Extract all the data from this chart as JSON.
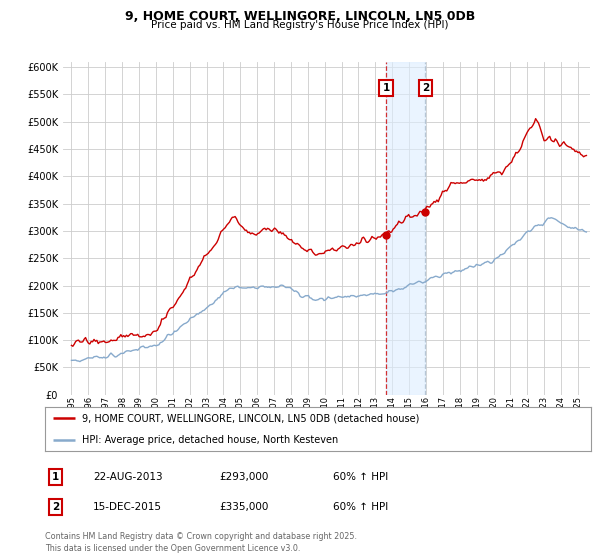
{
  "title": "9, HOME COURT, WELLINGORE, LINCOLN, LN5 0DB",
  "subtitle": "Price paid vs. HM Land Registry's House Price Index (HPI)",
  "red_label": "9, HOME COURT, WELLINGORE, LINCOLN, LN5 0DB (detached house)",
  "blue_label": "HPI: Average price, detached house, North Kesteven",
  "annotation1_date": "22-AUG-2013",
  "annotation1_price": "£293,000",
  "annotation1_hpi": "60% ↑ HPI",
  "annotation2_date": "15-DEC-2015",
  "annotation2_price": "£335,000",
  "annotation2_hpi": "60% ↑ HPI",
  "sale1_year": 2013.63,
  "sale1_price": 293000,
  "sale2_year": 2015.96,
  "sale2_price": 335000,
  "ylim_min": 0,
  "ylim_max": 610000,
  "xlim_min": 1994.5,
  "xlim_max": 2025.7,
  "footer": "Contains HM Land Registry data © Crown copyright and database right 2025.\nThis data is licensed under the Open Government Licence v3.0.",
  "background_color": "#ffffff",
  "grid_color": "#cccccc",
  "red_color": "#cc0000",
  "blue_color": "#88aacc",
  "shade_color": "#ddeeff"
}
